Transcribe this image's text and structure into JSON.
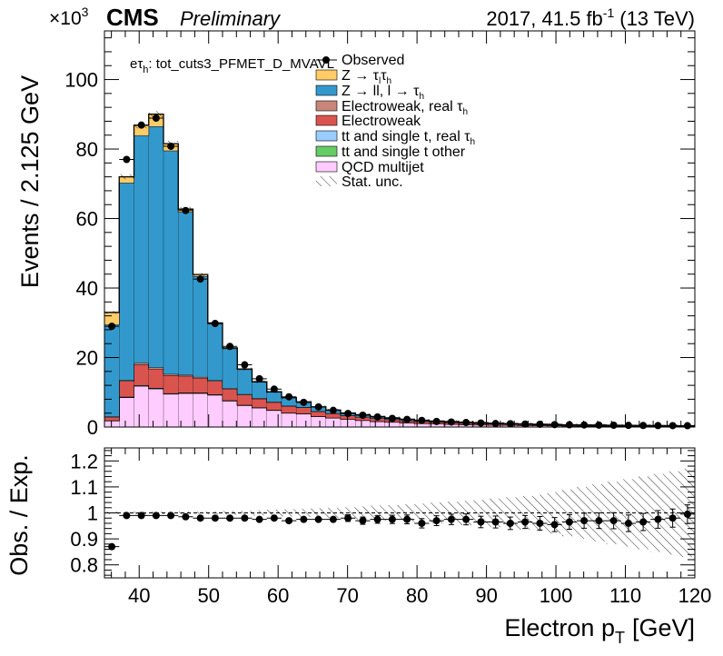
{
  "header": {
    "exponent_prefix": "×10",
    "exponent_power": "3",
    "experiment": "CMS",
    "status": "Preliminary",
    "lumi_prefix": "2017, 41.5 fb",
    "lumi_power": "-1",
    "lumi_suffix": "(13 TeV)"
  },
  "labels": {
    "channel_base": "eτ",
    "channel_sub": "h",
    "channel_rest": ": tot_cuts3_PFMET_D_MVAVL",
    "ylabel_top": "Events / 2.125 GeV",
    "ylabel_bottom": "Obs. / Exp.",
    "xlabel_main": "Electron p",
    "xlabel_sub": "T",
    "xlabel_unit": "[GeV]"
  },
  "legend": [
    {
      "label": "Observed",
      "kind": "marker",
      "color": "#000000"
    },
    {
      "label": "Z → τ_l τ_h",
      "kind": "box",
      "color": "#ffcc66"
    },
    {
      "label": "Z → ll, l → τ_h",
      "kind": "box",
      "color": "#3399cc"
    },
    {
      "label": "Electroweak, real τ_h",
      "kind": "box",
      "color": "#c8867a"
    },
    {
      "label": "Electroweak",
      "kind": "box",
      "color": "#d9544f"
    },
    {
      "label": "tt and single t, real τ_h",
      "kind": "box",
      "color": "#99ccff"
    },
    {
      "label": "tt and single t other",
      "kind": "box",
      "color": "#66cc66"
    },
    {
      "label": "QCD multijet",
      "kind": "box",
      "color": "#ffccff"
    },
    {
      "label": "Stat. unc.",
      "kind": "hatch",
      "color": "#000000"
    }
  ],
  "chart_data": [
    {
      "type": "bar",
      "stacked": true,
      "x_bin_edges": [
        35,
        37.125,
        39.25,
        41.375,
        43.5,
        45.625,
        47.75,
        49.875,
        52,
        54.125,
        56.25,
        58.375,
        60.5,
        62.625,
        64.75,
        66.875,
        69,
        71.125,
        73.25,
        75.375,
        77.5,
        79.625,
        81.75,
        83.875,
        86,
        88.125,
        90.25,
        92.375,
        94.5,
        96.625,
        98.75,
        100.875,
        103,
        105.125,
        107.25,
        109.375,
        111.5,
        113.625,
        115.75,
        117.875,
        120
      ],
      "series": [
        {
          "name": "QCD multijet",
          "color": "#ffccff",
          "values": [
            1.8,
            8.5,
            11.8,
            11.0,
            9.5,
            9.7,
            9.7,
            9.2,
            7.5,
            6.2,
            5.5,
            4.8,
            4.0,
            3.8,
            3.0,
            2.6,
            2.2,
            1.9,
            1.6,
            1.4,
            1.2,
            1.0,
            0.9,
            0.8,
            0.7,
            0.6,
            0.55,
            0.5,
            0.45,
            0.4,
            0.35,
            0.3,
            0.28,
            0.25,
            0.22,
            0.2,
            0.18,
            0.16,
            0.15,
            0.14
          ]
        },
        {
          "name": "tt and single t other",
          "color": "#66cc66",
          "values": [
            0.05,
            0.1,
            0.12,
            0.12,
            0.1,
            0.1,
            0.1,
            0.1,
            0.08,
            0.08,
            0.07,
            0.06,
            0.05,
            0.05,
            0.04,
            0.04,
            0.03,
            0.03,
            0.03,
            0.03,
            0.02,
            0.02,
            0.02,
            0.02,
            0.02,
            0.02,
            0.02,
            0.02,
            0.02,
            0.02,
            0.02,
            0.02,
            0.02,
            0.02,
            0.02,
            0.02,
            0.02,
            0.02,
            0.02,
            0.02
          ]
        },
        {
          "name": "tt and single t, real τh",
          "color": "#99ccff",
          "values": [
            0.05,
            0.1,
            0.12,
            0.12,
            0.1,
            0.1,
            0.1,
            0.1,
            0.08,
            0.08,
            0.07,
            0.06,
            0.05,
            0.05,
            0.04,
            0.04,
            0.03,
            0.03,
            0.03,
            0.03,
            0.02,
            0.02,
            0.02,
            0.02,
            0.02,
            0.02,
            0.02,
            0.02,
            0.02,
            0.02,
            0.02,
            0.02,
            0.02,
            0.02,
            0.02,
            0.02,
            0.02,
            0.02,
            0.02,
            0.02
          ]
        },
        {
          "name": "Electroweak",
          "color": "#d9544f",
          "values": [
            1.0,
            4.5,
            6.0,
            5.5,
            5.2,
            4.8,
            4.2,
            3.8,
            3.3,
            2.9,
            2.5,
            2.2,
            1.9,
            1.7,
            1.4,
            1.2,
            1.0,
            0.9,
            0.8,
            0.7,
            0.6,
            0.55,
            0.5,
            0.45,
            0.4,
            0.35,
            0.3,
            0.28,
            0.25,
            0.22,
            0.2,
            0.18,
            0.16,
            0.15,
            0.14,
            0.13,
            0.12,
            0.11,
            0.1,
            0.1
          ]
        },
        {
          "name": "Electroweak, real τh",
          "color": "#c8867a",
          "values": [
            0.1,
            0.3,
            0.4,
            0.4,
            0.35,
            0.3,
            0.3,
            0.25,
            0.2,
            0.2,
            0.18,
            0.15,
            0.12,
            0.1,
            0.1,
            0.08,
            0.07,
            0.06,
            0.05,
            0.05,
            0.04,
            0.04,
            0.03,
            0.03,
            0.03,
            0.03,
            0.02,
            0.02,
            0.02,
            0.02,
            0.02,
            0.02,
            0.02,
            0.02,
            0.02,
            0.02,
            0.02,
            0.02,
            0.02,
            0.02
          ]
        },
        {
          "name": "Z → ll, l → τh",
          "color": "#3399cc",
          "values": [
            26.5,
            56.8,
            65.5,
            69.4,
            64.3,
            46.9,
            29.0,
            16.2,
            11.4,
            7.1,
            4.6,
            2.8,
            2.3,
            1.5,
            1.2,
            0.9,
            0.7,
            0.6,
            0.5,
            0.4,
            0.35,
            0.3,
            0.25,
            0.22,
            0.2,
            0.18,
            0.16,
            0.15,
            0.13,
            0.12,
            0.11,
            0.1,
            0.1,
            0.09,
            0.08,
            0.08,
            0.07,
            0.07,
            0.06,
            0.06
          ]
        },
        {
          "name": "Z → τlτh",
          "color": "#ffcc66",
          "values": [
            3.5,
            1.7,
            2.9,
            3.5,
            2.0,
            0.8,
            0.5,
            0.3,
            0.2,
            0.15,
            0.1,
            0.08,
            0.06,
            0.05,
            0.04,
            0.03,
            0.03,
            0.02,
            0.02,
            0.02,
            0.02,
            0.02,
            0.02,
            0.02,
            0.02,
            0.02,
            0.02,
            0.02,
            0.02,
            0.02,
            0.02,
            0.02,
            0.02,
            0.02,
            0.02,
            0.02,
            0.02,
            0.02,
            0.02,
            0.02
          ]
        }
      ],
      "observed": [
        29.0,
        77.0,
        86.9,
        88.9,
        80.8,
        62.3,
        42.6,
        29.8,
        23.2,
        17.9,
        13.9,
        10.9,
        8.7,
        7.1,
        5.8,
        4.8,
        3.9,
        3.4,
        2.9,
        2.5,
        2.2,
        1.9,
        1.6,
        1.45,
        1.3,
        1.15,
        1.0,
        0.95,
        0.85,
        0.8,
        0.7,
        0.65,
        0.6,
        0.55,
        0.52,
        0.48,
        0.45,
        0.42,
        0.4,
        0.38
      ],
      "xlim": [
        35,
        120
      ],
      "ylim": [
        0,
        114
      ],
      "yticks": [
        0,
        20,
        40,
        60,
        80,
        100
      ],
      "yscale_label": "×10^3",
      "ylabel": "Events / 2.125 GeV"
    },
    {
      "type": "scatter",
      "x": [
        36.06,
        38.19,
        40.31,
        42.44,
        44.56,
        46.69,
        48.81,
        50.94,
        53.06,
        55.19,
        57.31,
        59.44,
        61.56,
        63.69,
        65.81,
        67.94,
        70.06,
        72.19,
        74.31,
        76.44,
        78.56,
        80.69,
        82.81,
        84.94,
        87.06,
        89.19,
        91.31,
        93.44,
        95.56,
        97.69,
        99.81,
        101.94,
        104.06,
        106.19,
        108.31,
        110.44,
        112.56,
        114.69,
        116.81,
        118.94
      ],
      "y": [
        0.87,
        0.99,
        0.99,
        0.99,
        0.99,
        0.985,
        0.98,
        0.98,
        0.98,
        0.98,
        0.975,
        0.98,
        0.97,
        0.975,
        0.975,
        0.975,
        0.98,
        0.97,
        0.975,
        0.975,
        0.975,
        0.96,
        0.97,
        0.975,
        0.975,
        0.965,
        0.965,
        0.96,
        0.965,
        0.96,
        0.955,
        0.965,
        0.97,
        0.97,
        0.97,
        0.96,
        0.965,
        0.975,
        0.98,
        0.995
      ],
      "yerr": [
        0.005,
        0.003,
        0.003,
        0.003,
        0.003,
        0.004,
        0.004,
        0.005,
        0.005,
        0.006,
        0.007,
        0.008,
        0.009,
        0.01,
        0.011,
        0.012,
        0.013,
        0.014,
        0.015,
        0.016,
        0.017,
        0.018,
        0.019,
        0.02,
        0.021,
        0.022,
        0.023,
        0.024,
        0.025,
        0.026,
        0.027,
        0.028,
        0.029,
        0.03,
        0.031,
        0.032,
        0.033,
        0.034,
        0.035,
        0.036
      ],
      "stat_unc_halfwidth": [
        0.005,
        0.005,
        0.005,
        0.005,
        0.005,
        0.005,
        0.005,
        0.006,
        0.007,
        0.008,
        0.01,
        0.012,
        0.014,
        0.016,
        0.018,
        0.02,
        0.022,
        0.025,
        0.028,
        0.03,
        0.033,
        0.036,
        0.04,
        0.043,
        0.047,
        0.05,
        0.055,
        0.06,
        0.065,
        0.07,
        0.08,
        0.09,
        0.1,
        0.11,
        0.12,
        0.13,
        0.14,
        0.15,
        0.16,
        0.17
      ],
      "xlim": [
        35,
        120
      ],
      "ylim": [
        0.75,
        1.25
      ],
      "yticks": [
        0.8,
        0.9,
        1,
        1.1,
        1.2
      ],
      "xticks": [
        40,
        50,
        60,
        70,
        80,
        90,
        100,
        110,
        120
      ],
      "ylabel": "Obs. / Exp.",
      "xlabel": "Electron pT [GeV]"
    }
  ]
}
